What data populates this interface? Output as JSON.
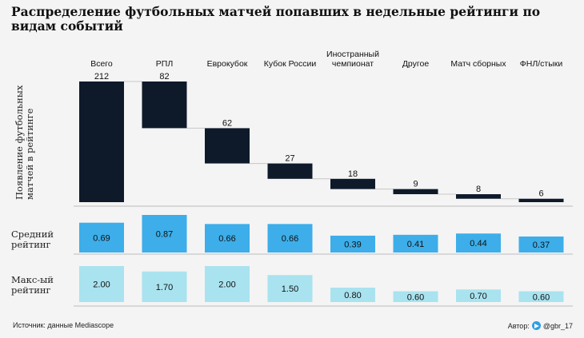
{
  "chart_data": {
    "title": "Распределение футбольных матчей попавших в недельные рейтинги по видам событий",
    "categories": [
      "Всего",
      "РПЛ",
      "Еврокубок",
      "Кубок России",
      "Иностранный чемпионат",
      "Другое",
      "Матч сборных",
      "ФНЛ/стыки"
    ],
    "panels": [
      {
        "type": "waterfall",
        "ylabel": "Появление футбольных матчей в рейтинге",
        "values": [
          212,
          82,
          62,
          27,
          18,
          9,
          8,
          6
        ],
        "ylim": [
          0,
          212
        ],
        "color": "#0e1a2a"
      },
      {
        "type": "bar",
        "ylabel": "Средний рейтинг",
        "values": [
          0.69,
          0.87,
          0.66,
          0.66,
          0.39,
          0.41,
          0.44,
          0.37
        ],
        "ylim": [
          0,
          0.87
        ],
        "color": "#3daee9"
      },
      {
        "type": "bar",
        "ylabel": "Макс-ый рейтинг",
        "values": [
          2.0,
          1.7,
          2.0,
          1.5,
          0.8,
          0.6,
          0.7,
          0.6
        ],
        "ylim": [
          0,
          2.0
        ],
        "color": "#a9e3ef"
      }
    ],
    "legend": "none",
    "grid": false
  },
  "footer": {
    "source": "Источник: данные Mediascope",
    "author_label": "Автор:",
    "author_handle": "@gbr_17"
  },
  "icons": {
    "author": "telegram-icon"
  }
}
